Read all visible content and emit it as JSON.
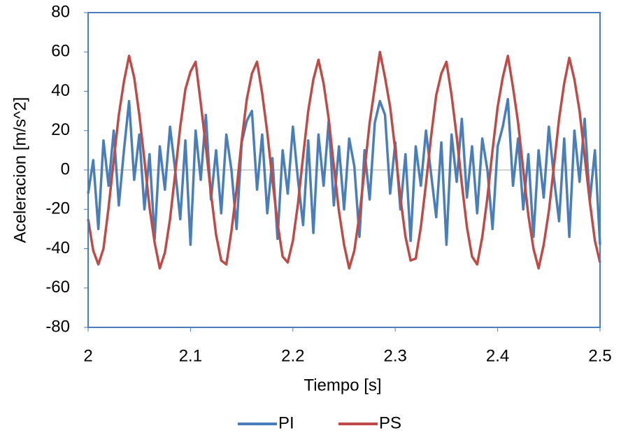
{
  "chart_data": {
    "type": "line",
    "x_label": "Tiempo [s]",
    "y_label": "Aceleracion [m/s^2]",
    "xlim": [
      2,
      2.5
    ],
    "xticks": [
      2,
      2.1,
      2.2,
      2.3,
      2.4,
      2.5
    ],
    "ylim": [
      -80,
      80
    ],
    "yticks": [
      -80,
      -60,
      -40,
      -20,
      0,
      20,
      40,
      60,
      80
    ],
    "legend": "bottom",
    "x": [
      2,
      2.005,
      2.01,
      2.015,
      2.02,
      2.025,
      2.03,
      2.035,
      2.04,
      2.045,
      2.05,
      2.055,
      2.06,
      2.065,
      2.07,
      2.075,
      2.08,
      2.085,
      2.09,
      2.095,
      2.1,
      2.105,
      2.11,
      2.115,
      2.12,
      2.125,
      2.13,
      2.135,
      2.14,
      2.145,
      2.15,
      2.155,
      2.16,
      2.165,
      2.17,
      2.175,
      2.18,
      2.185,
      2.19,
      2.195,
      2.2,
      2.205,
      2.21,
      2.215,
      2.22,
      2.225,
      2.23,
      2.235,
      2.24,
      2.245,
      2.25,
      2.255,
      2.26,
      2.265,
      2.27,
      2.275,
      2.28,
      2.285,
      2.29,
      2.295,
      2.3,
      2.305,
      2.31,
      2.315,
      2.32,
      2.325,
      2.33,
      2.335,
      2.34,
      2.345,
      2.35,
      2.355,
      2.36,
      2.365,
      2.37,
      2.375,
      2.38,
      2.385,
      2.39,
      2.395,
      2.4,
      2.405,
      2.41,
      2.415,
      2.42,
      2.425,
      2.43,
      2.435,
      2.44,
      2.445,
      2.45,
      2.455,
      2.46,
      2.465,
      2.47,
      2.475,
      2.48,
      2.485,
      2.49,
      2.495,
      2.5
    ],
    "series": [
      {
        "name": "PI",
        "color": "#4a7ebb",
        "values": [
          -12,
          5,
          -30,
          15,
          -8,
          20,
          -18,
          10,
          35,
          -5,
          18,
          -20,
          8,
          -35,
          12,
          -10,
          22,
          0,
          -25,
          15,
          -38,
          20,
          -5,
          28,
          -15,
          10,
          -22,
          18,
          0,
          -30,
          14,
          25,
          30,
          -10,
          18,
          -22,
          6,
          -35,
          10,
          -12,
          22,
          -5,
          -28,
          15,
          -32,
          18,
          -8,
          25,
          -18,
          12,
          -20,
          16,
          2,
          -34,
          10,
          -15,
          24,
          35,
          28,
          -12,
          14,
          -20,
          8,
          -36,
          12,
          -8,
          20,
          -2,
          -24,
          14,
          -38,
          18,
          -6,
          26,
          -14,
          12,
          -22,
          16,
          0,
          -30,
          12,
          22,
          36,
          -8,
          16,
          -20,
          8,
          -34,
          10,
          -14,
          22,
          -4,
          -26,
          16,
          -34,
          20,
          -6,
          26,
          -16,
          10,
          -38
        ]
      },
      {
        "name": "PS",
        "color": "#be4b48",
        "values": [
          -25,
          -41,
          -48,
          -40,
          -19,
          5,
          28,
          45,
          58,
          47,
          28,
          5,
          -19,
          -37,
          -50,
          -42,
          -25,
          -2,
          22,
          41,
          50,
          55,
          34,
          12,
          -12,
          -33,
          -46,
          -48,
          -31,
          -10,
          15,
          36,
          49,
          55,
          39,
          19,
          -5,
          -27,
          -44,
          -47,
          -36,
          -17,
          7,
          30,
          46,
          56,
          44,
          26,
          2,
          -21,
          -38,
          -50,
          -41,
          -23,
          0,
          24,
          42,
          60,
          47,
          32,
          10,
          -14,
          -34,
          -46,
          -45,
          -29,
          -7,
          17,
          38,
          49,
          55,
          38,
          17,
          -7,
          -29,
          -44,
          -48,
          -34,
          -14,
          10,
          32,
          47,
          58,
          42,
          24,
          0,
          -23,
          -40,
          -50,
          -38,
          -21,
          2,
          26,
          44,
          57,
          46,
          30,
          7,
          -16,
          -36,
          -47
        ]
      }
    ]
  }
}
